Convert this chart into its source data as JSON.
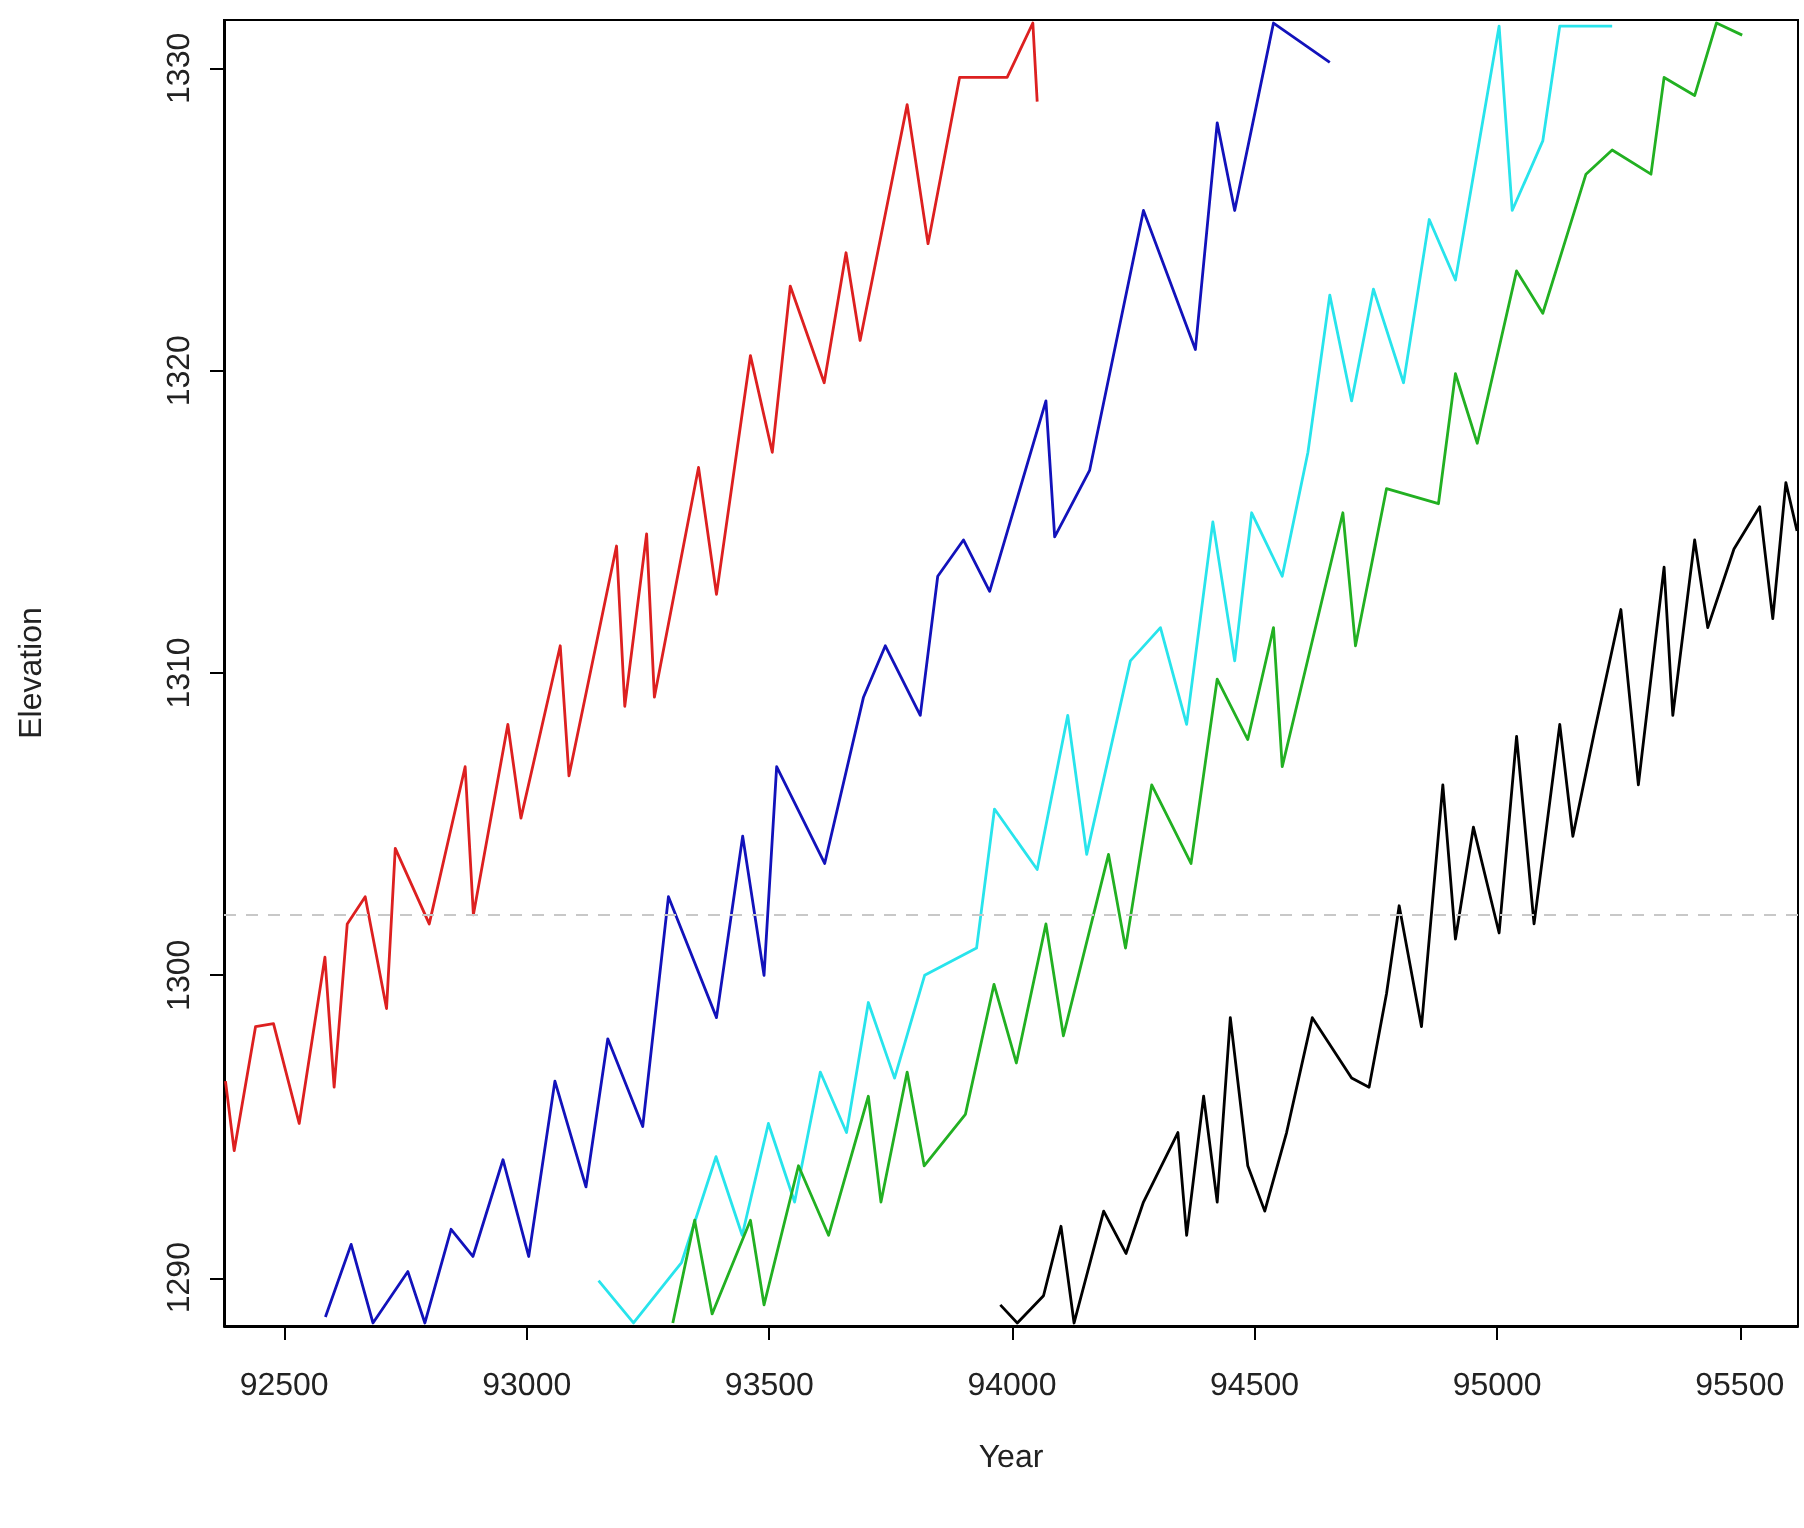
{
  "chart_data": {
    "type": "line",
    "xlabel": "Year",
    "ylabel": "Elevation",
    "xlim": [
      92376,
      95620
    ],
    "ylim": [
      1288.4,
      1331.6
    ],
    "xticks": [
      92500,
      93000,
      93500,
      94000,
      94500,
      95000,
      95500
    ],
    "yticks": [
      1290,
      1300,
      1310,
      1320,
      1330
    ],
    "grid": false,
    "ref_lines": [
      {
        "axis": "y",
        "value": 1302,
        "color": "#c8c8c8",
        "line_style": "dashed"
      }
    ],
    "series": [
      {
        "color": "#dd2020",
        "x": [
          92379,
          92397,
          92441,
          92478,
          92531,
          92584,
          92603,
          92630,
          92667,
          92711,
          92729,
          92799,
          92873,
          92890,
          92961,
          92988,
          93069,
          93087,
          93185,
          93202,
          93247,
          93263,
          93354,
          93391,
          93461,
          93506,
          93543,
          93613,
          93658,
          93687,
          93784,
          93827,
          93892,
          93990,
          94043,
          94052
        ],
        "values": [
          1296.5,
          1294.2,
          1298.3,
          1298.4,
          1295.1,
          1300.6,
          1296.3,
          1301.7,
          1302.6,
          1298.9,
          1304.2,
          1301.7,
          1306.9,
          1302.0,
          1308.3,
          1305.2,
          1310.9,
          1306.6,
          1314.2,
          1308.9,
          1314.6,
          1309.2,
          1316.8,
          1312.6,
          1320.5,
          1317.3,
          1322.8,
          1319.6,
          1323.9,
          1321.0,
          1328.8,
          1324.2,
          1329.7,
          1329.7,
          1331.5,
          1328.9
        ]
      },
      {
        "color": "#1212bb",
        "x": [
          92585,
          92638,
          92683,
          92755,
          92790,
          92844,
          92889,
          92951,
          93004,
          93058,
          93122,
          93167,
          93239,
          93292,
          93391,
          93445,
          93489,
          93515,
          93614,
          93694,
          93739,
          93811,
          93847,
          93900,
          93954,
          94070,
          94088,
          94160,
          94271,
          94378,
          94423,
          94459,
          94539,
          94655
        ],
        "values": [
          1288.7,
          1291.1,
          1288.5,
          1290.2,
          1288.5,
          1291.6,
          1290.7,
          1293.9,
          1290.7,
          1296.5,
          1293.0,
          1297.9,
          1295.0,
          1302.6,
          1298.6,
          1304.6,
          1300.0,
          1306.9,
          1303.7,
          1309.2,
          1310.9,
          1308.6,
          1313.2,
          1314.4,
          1312.7,
          1319.0,
          1314.5,
          1316.7,
          1325.3,
          1320.7,
          1328.2,
          1325.3,
          1331.5,
          1330.2
        ]
      },
      {
        "color": "#28e4ec",
        "x": [
          93148,
          93220,
          93319,
          93390,
          93444,
          93498,
          93552,
          93605,
          93659,
          93704,
          93758,
          93820,
          93927,
          93964,
          94052,
          94115,
          94154,
          94244,
          94306,
          94360,
          94414,
          94459,
          94494,
          94557,
          94610,
          94655,
          94700,
          94745,
          94807,
          94860,
          94914,
          95004,
          95031,
          95094,
          95129,
          95237
        ],
        "values": [
          1289.9,
          1288.5,
          1290.5,
          1294.0,
          1291.4,
          1295.1,
          1292.5,
          1296.8,
          1294.8,
          1299.1,
          1296.6,
          1300.0,
          1300.9,
          1305.5,
          1303.5,
          1308.6,
          1304.0,
          1310.4,
          1311.5,
          1308.3,
          1315.0,
          1310.4,
          1315.3,
          1313.2,
          1317.3,
          1322.5,
          1319.0,
          1322.7,
          1319.6,
          1325.0,
          1323.0,
          1331.4,
          1325.3,
          1327.6,
          1331.4,
          1331.4
        ]
      },
      {
        "color": "#22b022",
        "x": [
          93301,
          93346,
          93382,
          93461,
          93489,
          93560,
          93622,
          93704,
          93730,
          93784,
          93819,
          93904,
          93963,
          94009,
          94070,
          94106,
          94199,
          94234,
          94288,
          94369,
          94423,
          94486,
          94539,
          94557,
          94682,
          94708,
          94772,
          94879,
          94914,
          94959,
          95040,
          95094,
          95183,
          95237,
          95317,
          95344,
          95407,
          95452,
          95505
        ],
        "values": [
          1288.5,
          1291.9,
          1288.8,
          1291.9,
          1289.1,
          1293.7,
          1291.4,
          1296.0,
          1292.5,
          1296.8,
          1293.7,
          1295.4,
          1299.7,
          1297.1,
          1301.7,
          1298.0,
          1304.0,
          1300.9,
          1306.3,
          1303.7,
          1309.8,
          1307.8,
          1311.5,
          1306.9,
          1315.3,
          1310.9,
          1316.1,
          1315.6,
          1319.9,
          1317.6,
          1323.3,
          1321.9,
          1326.5,
          1327.3,
          1326.5,
          1329.7,
          1329.1,
          1331.5,
          1331.1
        ]
      },
      {
        "color": "#000000",
        "x": [
          93976,
          94011,
          94065,
          94101,
          94128,
          94189,
          94235,
          94271,
          94342,
          94360,
          94395,
          94423,
          94450,
          94486,
          94521,
          94566,
          94619,
          94700,
          94736,
          94772,
          94798,
          94844,
          94888,
          94914,
          94951,
          95004,
          95040,
          95076,
          95129,
          95156,
          95201,
          95255,
          95291,
          95344,
          95362,
          95407,
          95434,
          95488,
          95541,
          95568,
          95595,
          95618
        ],
        "values": [
          1289.1,
          1288.5,
          1289.4,
          1291.7,
          1288.5,
          1292.2,
          1290.8,
          1292.5,
          1294.8,
          1291.4,
          1296.0,
          1292.5,
          1298.6,
          1293.7,
          1292.2,
          1294.8,
          1298.6,
          1296.6,
          1296.3,
          1299.4,
          1302.3,
          1298.3,
          1306.3,
          1301.2,
          1304.9,
          1301.4,
          1307.9,
          1301.7,
          1308.3,
          1304.6,
          1308.1,
          1312.1,
          1306.3,
          1313.5,
          1308.6,
          1314.4,
          1311.5,
          1314.1,
          1315.5,
          1311.8,
          1316.3,
          1314.7
        ]
      }
    ]
  }
}
